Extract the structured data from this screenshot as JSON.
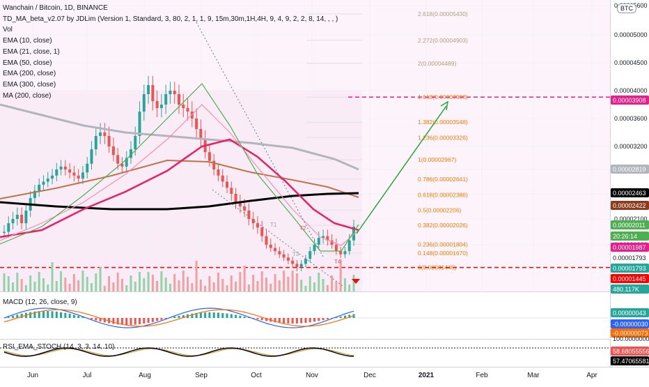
{
  "legend": [
    "Wanchain / Bitcoin, 1D, BINANCE",
    "TD_MA_beta_v2.07 by JDLim (Version 1, Standard, 3, 80, 2, 1, 1, 9, 15m,30m,1H,4H, 9, 4, 9, 2, 2, 8, 14, , , )",
    "Vol",
    "EMA (10, close)",
    "EMA (21, close, 1)",
    "EMA (50, close)",
    "EMA (200, close)",
    "EMA (300, close)",
    "MA (200, close)"
  ],
  "currency_badge": "BTC",
  "macd_legend": "MACD (12, 26, close, 9)",
  "stoch_legend": "RSI_EMA_STOCH (14, 3, 3, 14, 10)",
  "colors": {
    "up": "#26a69a",
    "down": "#ef5350",
    "ema_pink": "#e91e63",
    "ema_black": "#000000",
    "ema_brown": "#c0734a",
    "ma_gray": "#b2b5be",
    "arrow_green": "#23a73a",
    "target_magenta": "#e91e8c",
    "fib_text": "#f57c00",
    "support_red": "#ff0000",
    "bg_pink": "#f8e8f4"
  },
  "chart_data": [
    {
      "type": "candlestick",
      "title": "Wanchain / Bitcoin, 1D, BINANCE",
      "x_ticks": [
        "Jun",
        "Jul",
        "Aug",
        "Sep",
        "Oct",
        "Nov",
        "Dec",
        "2021",
        "Feb",
        "Mar",
        "Apr"
      ],
      "y_ticks": [
        "0.00005600",
        "0.00005000",
        "0.00004500",
        "0.00004000",
        "0.00003600",
        "0.00003200",
        "0.00002800",
        "0.00002400",
        "0.00002100",
        "0.00001800"
      ],
      "ylim": [
        1.35e-05,
        5.6e-05
      ],
      "approx_close_series": [
        1.95e-05,
        2.05e-05,
        2.1e-05,
        2.15e-05,
        2.05e-05,
        2.2e-05,
        2.35e-05,
        2.45e-05,
        2.55e-05,
        2.6e-05,
        2.65e-05,
        2.7e-05,
        2.8e-05,
        2.85e-05,
        2.8e-05,
        2.75e-05,
        2.7e-05,
        2.65e-05,
        2.75e-05,
        2.9e-05,
        3.15e-05,
        3.35e-05,
        3.4e-05,
        3.35e-05,
        3.2e-05,
        3.05e-05,
        2.9e-05,
        2.85e-05,
        3e-05,
        3.15e-05,
        3.35e-05,
        3.7e-05,
        3.95e-05,
        4.1e-05,
        3.85e-05,
        3.75e-05,
        3.8e-05,
        3.95e-05,
        4e-05,
        3.95e-05,
        3.8e-05,
        3.75e-05,
        3.7e-05,
        3.6e-05,
        3.45e-05,
        3.3e-05,
        3.1e-05,
        2.95e-05,
        2.8e-05,
        2.7e-05,
        2.6e-05,
        2.5e-05,
        2.4e-05,
        2.3e-05,
        2.25e-05,
        2.2e-05,
        2.1e-05,
        2.05e-05,
        2e-05,
        1.9e-05,
        1.8e-05,
        1.75e-05,
        1.7e-05,
        1.65e-05,
        1.6e-05,
        1.55e-05,
        1.5e-05,
        1.45e-05,
        1.5e-05,
        1.58e-05,
        1.7e-05,
        1.8e-05,
        1.88e-05,
        1.9e-05,
        1.85e-05,
        1.8e-05,
        1.7e-05,
        1.65e-05,
        1.7e-05,
        1.85e-05,
        2.01e-05
      ],
      "fib_levels": [
        {
          "label": "2.618(0.00005430)",
          "value": 5.43e-05
        },
        {
          "label": "2.272(0.00004903)",
          "value": 4.903e-05
        },
        {
          "label": "2(0.00004489)",
          "value": 4.489e-05
        },
        {
          "label": "1.618(0.00003908)",
          "value": 3.908e-05
        },
        {
          "label": "1.382(0.00003548)",
          "value": 3.548e-05
        },
        {
          "label": "1.236(0.00003326)",
          "value": 3.326e-05
        },
        {
          "label": "1(0.00002967)",
          "value": 2.967e-05
        },
        {
          "label": "0.786(0.00002641)",
          "value": 2.641e-05
        },
        {
          "label": "0.618(0.00002386)",
          "value": 2.386e-05
        },
        {
          "label": "0.5(0.00002206)",
          "value": 2.206e-05
        },
        {
          "label": "0.382(0.00002026)",
          "value": 2.026e-05
        },
        {
          "label": "0.236(0.00001804)",
          "value": 1.804e-05
        },
        {
          "label": "0.148(0.00001670)",
          "value": 1.67e-05
        },
        {
          "label": "0(0.00001445)",
          "value": 1.445e-05
        }
      ],
      "price_labels": [
        {
          "text": "0.00003908",
          "color": "#e91e8c"
        },
        {
          "text": "0.00002819",
          "color": "#b2b5be"
        },
        {
          "text": "0.00002463",
          "color": "#000000"
        },
        {
          "text": "0.00002422",
          "color": "#8d3b1a"
        },
        {
          "text": "0.00002011",
          "color": "#4caf50"
        },
        {
          "text": "20:26:14",
          "color": "#4caf50"
        },
        {
          "text": "0.00001987",
          "color": "#e91e8c"
        },
        {
          "text": "0.00001793",
          "color": "#26a69a"
        },
        {
          "text": "0.00001445",
          "color": "#ff0000"
        },
        {
          "text": "480.117K",
          "color": "#26a69a"
        }
      ],
      "plain_price_labels": [
        {
          "text": "0.00001793"
        }
      ],
      "grid": true,
      "annotations": [
        "T1",
        "T2",
        "T3",
        "T4"
      ]
    },
    {
      "type": "line",
      "title": "MACD (12, 26, close, 9)",
      "price_labels": [
        {
          "text": "0.00000043",
          "color": "#26a69a"
        },
        {
          "text": "-0.00000030",
          "color": "#2962ff"
        },
        {
          "text": "-0.00000073",
          "color": "#ff6d00"
        }
      ]
    },
    {
      "type": "line",
      "title": "RSI_EMA_STOCH (14, 3, 3, 14, 10)",
      "tick_labels": [
        "100.00000000"
      ],
      "price_labels": [
        {
          "text": "58.68055556",
          "color": "#ef5350"
        },
        {
          "text": "57.47065581",
          "color": "#000000"
        }
      ]
    }
  ]
}
